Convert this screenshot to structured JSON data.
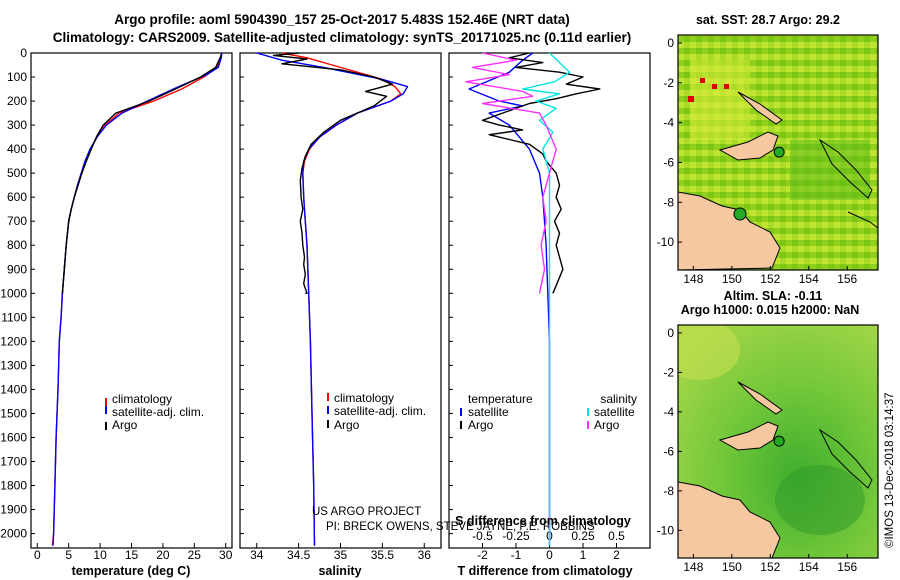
{
  "title_line1": "Argo profile: aoml 5904390_157 25-Oct-2017 5.483S 152.46E (NRT data)",
  "title_line2": "Climatology: CARS2009. Satellite-adjusted climatology: synTS_20171025.nc (0.11d earlier)",
  "watermark": "©IMOS 13-Dec-2018 03:14:37",
  "project_line1": "US ARGO PROJECT",
  "project_line2": "PI: BRECK OWENS, STEVE JAYNE, P.E. ROBBINS",
  "depth_ticks": [
    "0",
    "100",
    "200",
    "300",
    "400",
    "500",
    "600",
    "700",
    "800",
    "900",
    "1000",
    "1100",
    "1200",
    "1300",
    "1400",
    "1500",
    "1600",
    "1700",
    "1800",
    "1900",
    "2000"
  ],
  "colors": {
    "climatology": "#ff0000",
    "satellite": "#0000ff",
    "argo": "#000000",
    "sal_sat": "#00e5e5",
    "sal_argo": "#ff30ff",
    "land": "#f5c8a0"
  },
  "chart_data": [
    {
      "type": "line",
      "title": "temperature profile",
      "xlabel": "temperature (deg C)",
      "ylabel": "depth",
      "xlim": [
        -1,
        31
      ],
      "ylim": [
        2060,
        0
      ],
      "xticks": [
        "0",
        "5",
        "10",
        "15",
        "20",
        "25",
        "30"
      ],
      "xtick_values": [
        0,
        5,
        10,
        15,
        20,
        25,
        30
      ],
      "legend": [
        "climatology",
        "satellite-adj. clim.",
        "Argo"
      ],
      "series": [
        {
          "name": "climatology",
          "color": "red",
          "x": [
            29.3,
            29.2,
            28.6,
            26.5,
            23.0,
            18.5,
            13.0,
            10.8,
            9.5,
            8.5,
            7.7,
            7.0,
            6.4,
            5.9,
            5.4,
            5.0,
            4.6,
            4.3,
            4.0,
            3.8,
            3.5,
            3.3,
            3.0,
            2.8,
            2.6,
            2.4
          ],
          "depth": [
            0,
            20,
            60,
            100,
            150,
            200,
            250,
            300,
            350,
            400,
            450,
            500,
            550,
            600,
            650,
            700,
            800,
            900,
            1000,
            1100,
            1200,
            1400,
            1600,
            1800,
            2000,
            2050
          ]
        },
        {
          "name": "satellite-adj. clim.",
          "color": "blue",
          "x": [
            29.4,
            29.3,
            28.8,
            27.0,
            22.5,
            17.5,
            13.5,
            11.0,
            9.5,
            8.4,
            7.6,
            7.0,
            6.4,
            5.9,
            5.4,
            5.0,
            4.6,
            4.3,
            4.0,
            3.8,
            3.5,
            3.3,
            3.0,
            2.8,
            2.6,
            2.5
          ],
          "depth": [
            0,
            20,
            60,
            90,
            140,
            200,
            250,
            300,
            350,
            400,
            450,
            500,
            550,
            600,
            650,
            700,
            800,
            900,
            1000,
            1100,
            1200,
            1400,
            1600,
            1800,
            2000,
            2050
          ]
        },
        {
          "name": "Argo",
          "color": "black",
          "x": [
            29.3,
            29.1,
            28.4,
            26.0,
            22.0,
            17.8,
            12.5,
            10.5,
            9.4,
            8.6,
            7.8,
            7.1,
            6.5,
            5.9,
            5.4,
            5.0,
            4.6,
            4.3,
            4.0
          ],
          "depth": [
            5,
            20,
            60,
            100,
            150,
            200,
            250,
            300,
            350,
            400,
            450,
            500,
            550,
            600,
            650,
            700,
            800,
            900,
            1000
          ]
        }
      ]
    },
    {
      "type": "line",
      "title": "salinity profile",
      "xlabel": "salinity",
      "ylabel": "depth",
      "xlim": [
        33.8,
        36.2
      ],
      "ylim": [
        2060,
        0
      ],
      "xticks": [
        "34",
        "34.5",
        "35",
        "35.5",
        "36"
      ],
      "xtick_values": [
        34,
        34.5,
        35,
        35.5,
        36
      ],
      "legend": [
        "climatology",
        "satellite-adj. clim.",
        "Argo"
      ],
      "series": [
        {
          "name": "climatology",
          "color": "red",
          "x": [
            34.3,
            34.6,
            34.9,
            35.2,
            35.5,
            35.65,
            35.72,
            35.6,
            35.2,
            34.95,
            34.75,
            34.63,
            34.57,
            34.55,
            34.56,
            34.58,
            34.6,
            34.62,
            34.64,
            34.66,
            34.68,
            34.69
          ],
          "depth": [
            0,
            20,
            50,
            80,
            110,
            140,
            170,
            200,
            250,
            300,
            350,
            400,
            450,
            500,
            600,
            700,
            800,
            1000,
            1200,
            1500,
            1800,
            2050
          ]
        },
        {
          "name": "satellite-adj. clim.",
          "color": "blue",
          "x": [
            34.0,
            34.3,
            34.8,
            35.5,
            35.8,
            35.75,
            35.6,
            35.2,
            34.95,
            34.75,
            34.62,
            34.56,
            34.55,
            34.56,
            34.58,
            34.6,
            34.62,
            34.64,
            34.66,
            34.68,
            34.69
          ],
          "depth": [
            0,
            30,
            60,
            110,
            140,
            170,
            200,
            250,
            300,
            350,
            400,
            450,
            500,
            600,
            700,
            800,
            1000,
            1200,
            1500,
            1800,
            2050
          ]
        },
        {
          "name": "Argo",
          "color": "black",
          "x": [
            34.5,
            34.2,
            34.6,
            34.3,
            35.0,
            35.4,
            35.62,
            35.3,
            35.55,
            35.4,
            35.0,
            34.8,
            34.65,
            34.58,
            34.54,
            34.52,
            34.53,
            34.55,
            34.52,
            34.54,
            34.55,
            34.57,
            34.56,
            34.58,
            34.56,
            34.6,
            34.58
          ],
          "depth": [
            0,
            10,
            25,
            45,
            70,
            100,
            130,
            160,
            180,
            220,
            280,
            330,
            380,
            430,
            480,
            530,
            600,
            650,
            700,
            750,
            800,
            850,
            880,
            920,
            960,
            1000,
            1000
          ]
        }
      ]
    },
    {
      "type": "line",
      "title": "difference from climatology",
      "xlabel": "T difference from climatology",
      "x2label": "S difference from climatology",
      "xlim": [
        -3,
        3
      ],
      "ylim": [
        2060,
        0
      ],
      "xticks": [
        "-2",
        "-1",
        "0",
        "1",
        "2"
      ],
      "xtick_values": [
        -2,
        -1,
        0,
        1,
        2
      ],
      "x2ticks": [
        "-0.5",
        "-0.25",
        "0",
        "0.25",
        "0.5"
      ],
      "x2tick_values": [
        -0.5,
        -0.25,
        0,
        0.25,
        0.5
      ],
      "legend_temperature_header": "temperature",
      "legend_salinity_header": "salinity",
      "legend_temperature": [
        "satellite",
        "Argo"
      ],
      "legend_salinity": [
        "satellite",
        "Argo"
      ],
      "series": [
        {
          "name": "temperature satellite",
          "color": "blue",
          "x": [
            -0.5,
            -0.8,
            -1.2,
            -2.4,
            -1.5,
            -0.8,
            -1.8,
            -1.2,
            -0.6,
            -0.3,
            -0.2,
            -0.15,
            -0.1,
            -0.05,
            0,
            0,
            0
          ],
          "depth": [
            0,
            30,
            80,
            150,
            200,
            220,
            250,
            300,
            400,
            500,
            600,
            700,
            800,
            1000,
            1200,
            1500,
            2050
          ]
        },
        {
          "name": "temperature Argo",
          "color": "black",
          "x": [
            -0.6,
            -1.2,
            -0.2,
            -1.0,
            0.3,
            1.0,
            0.5,
            1.5,
            0.8,
            0.2,
            -0.6,
            -1.2,
            -2.0,
            -1.5,
            -0.8,
            -1.8,
            -1.2,
            -0.6,
            -0.2,
            -0.1,
            0.2,
            0.3,
            0.2,
            0.35,
            0.15,
            0.3,
            0.2,
            0.4,
            0.1
          ],
          "depth": [
            0,
            20,
            40,
            60,
            80,
            100,
            130,
            150,
            170,
            190,
            210,
            240,
            280,
            300,
            320,
            340,
            360,
            380,
            420,
            450,
            500,
            550,
            600,
            650,
            700,
            750,
            800,
            900,
            1000
          ]
        },
        {
          "name": "salinity satellite",
          "color": "cyan",
          "x": [
            0,
            0.3,
            0.6,
            0.15,
            -0.8,
            0.3,
            -0.4,
            0.2,
            -0.3,
            0.1,
            -0.2,
            0,
            0,
            0,
            0,
            0,
            0
          ],
          "depth": [
            0,
            40,
            80,
            120,
            150,
            170,
            200,
            230,
            280,
            330,
            400,
            500,
            700,
            1000,
            1300,
            1600,
            2050
          ]
        },
        {
          "name": "salinity Argo",
          "color": "magenta",
          "x": [
            -2.0,
            -1.0,
            -2.3,
            -1.2,
            -2.5,
            -0.8,
            -0.5,
            -2.0,
            -0.3,
            -0.1,
            0.2,
            0,
            -0.2,
            -0.1,
            -0.25,
            -0.15,
            -0.3
          ],
          "depth": [
            0,
            30,
            60,
            90,
            120,
            160,
            180,
            210,
            250,
            300,
            400,
            500,
            600,
            700,
            800,
            900,
            1000
          ]
        }
      ]
    },
    {
      "type": "heatmap",
      "title": "sat. SST: 28.7 Argo: 29.2",
      "xlim": [
        147.2,
        157.6
      ],
      "ylim": [
        -11.4,
        0.4
      ],
      "xticks": [
        "148",
        "150",
        "152",
        "154",
        "156"
      ],
      "yticks": [
        "0",
        "-2",
        "-4",
        "-6",
        "-8",
        "-10"
      ],
      "argo_position": [
        152.46,
        -5.483
      ]
    },
    {
      "type": "heatmap",
      "title_line1": "Altim. SLA: -0.11",
      "title_line2": "Argo h1000: 0.015 h2000: NaN",
      "xlim": [
        147.2,
        157.6
      ],
      "ylim": [
        -11.4,
        0.4
      ],
      "xticks": [
        "148",
        "150",
        "152",
        "154",
        "156"
      ],
      "yticks": [
        "0",
        "-2",
        "-4",
        "-6",
        "-8",
        "-10"
      ],
      "argo_position": [
        152.46,
        -5.483
      ]
    }
  ]
}
